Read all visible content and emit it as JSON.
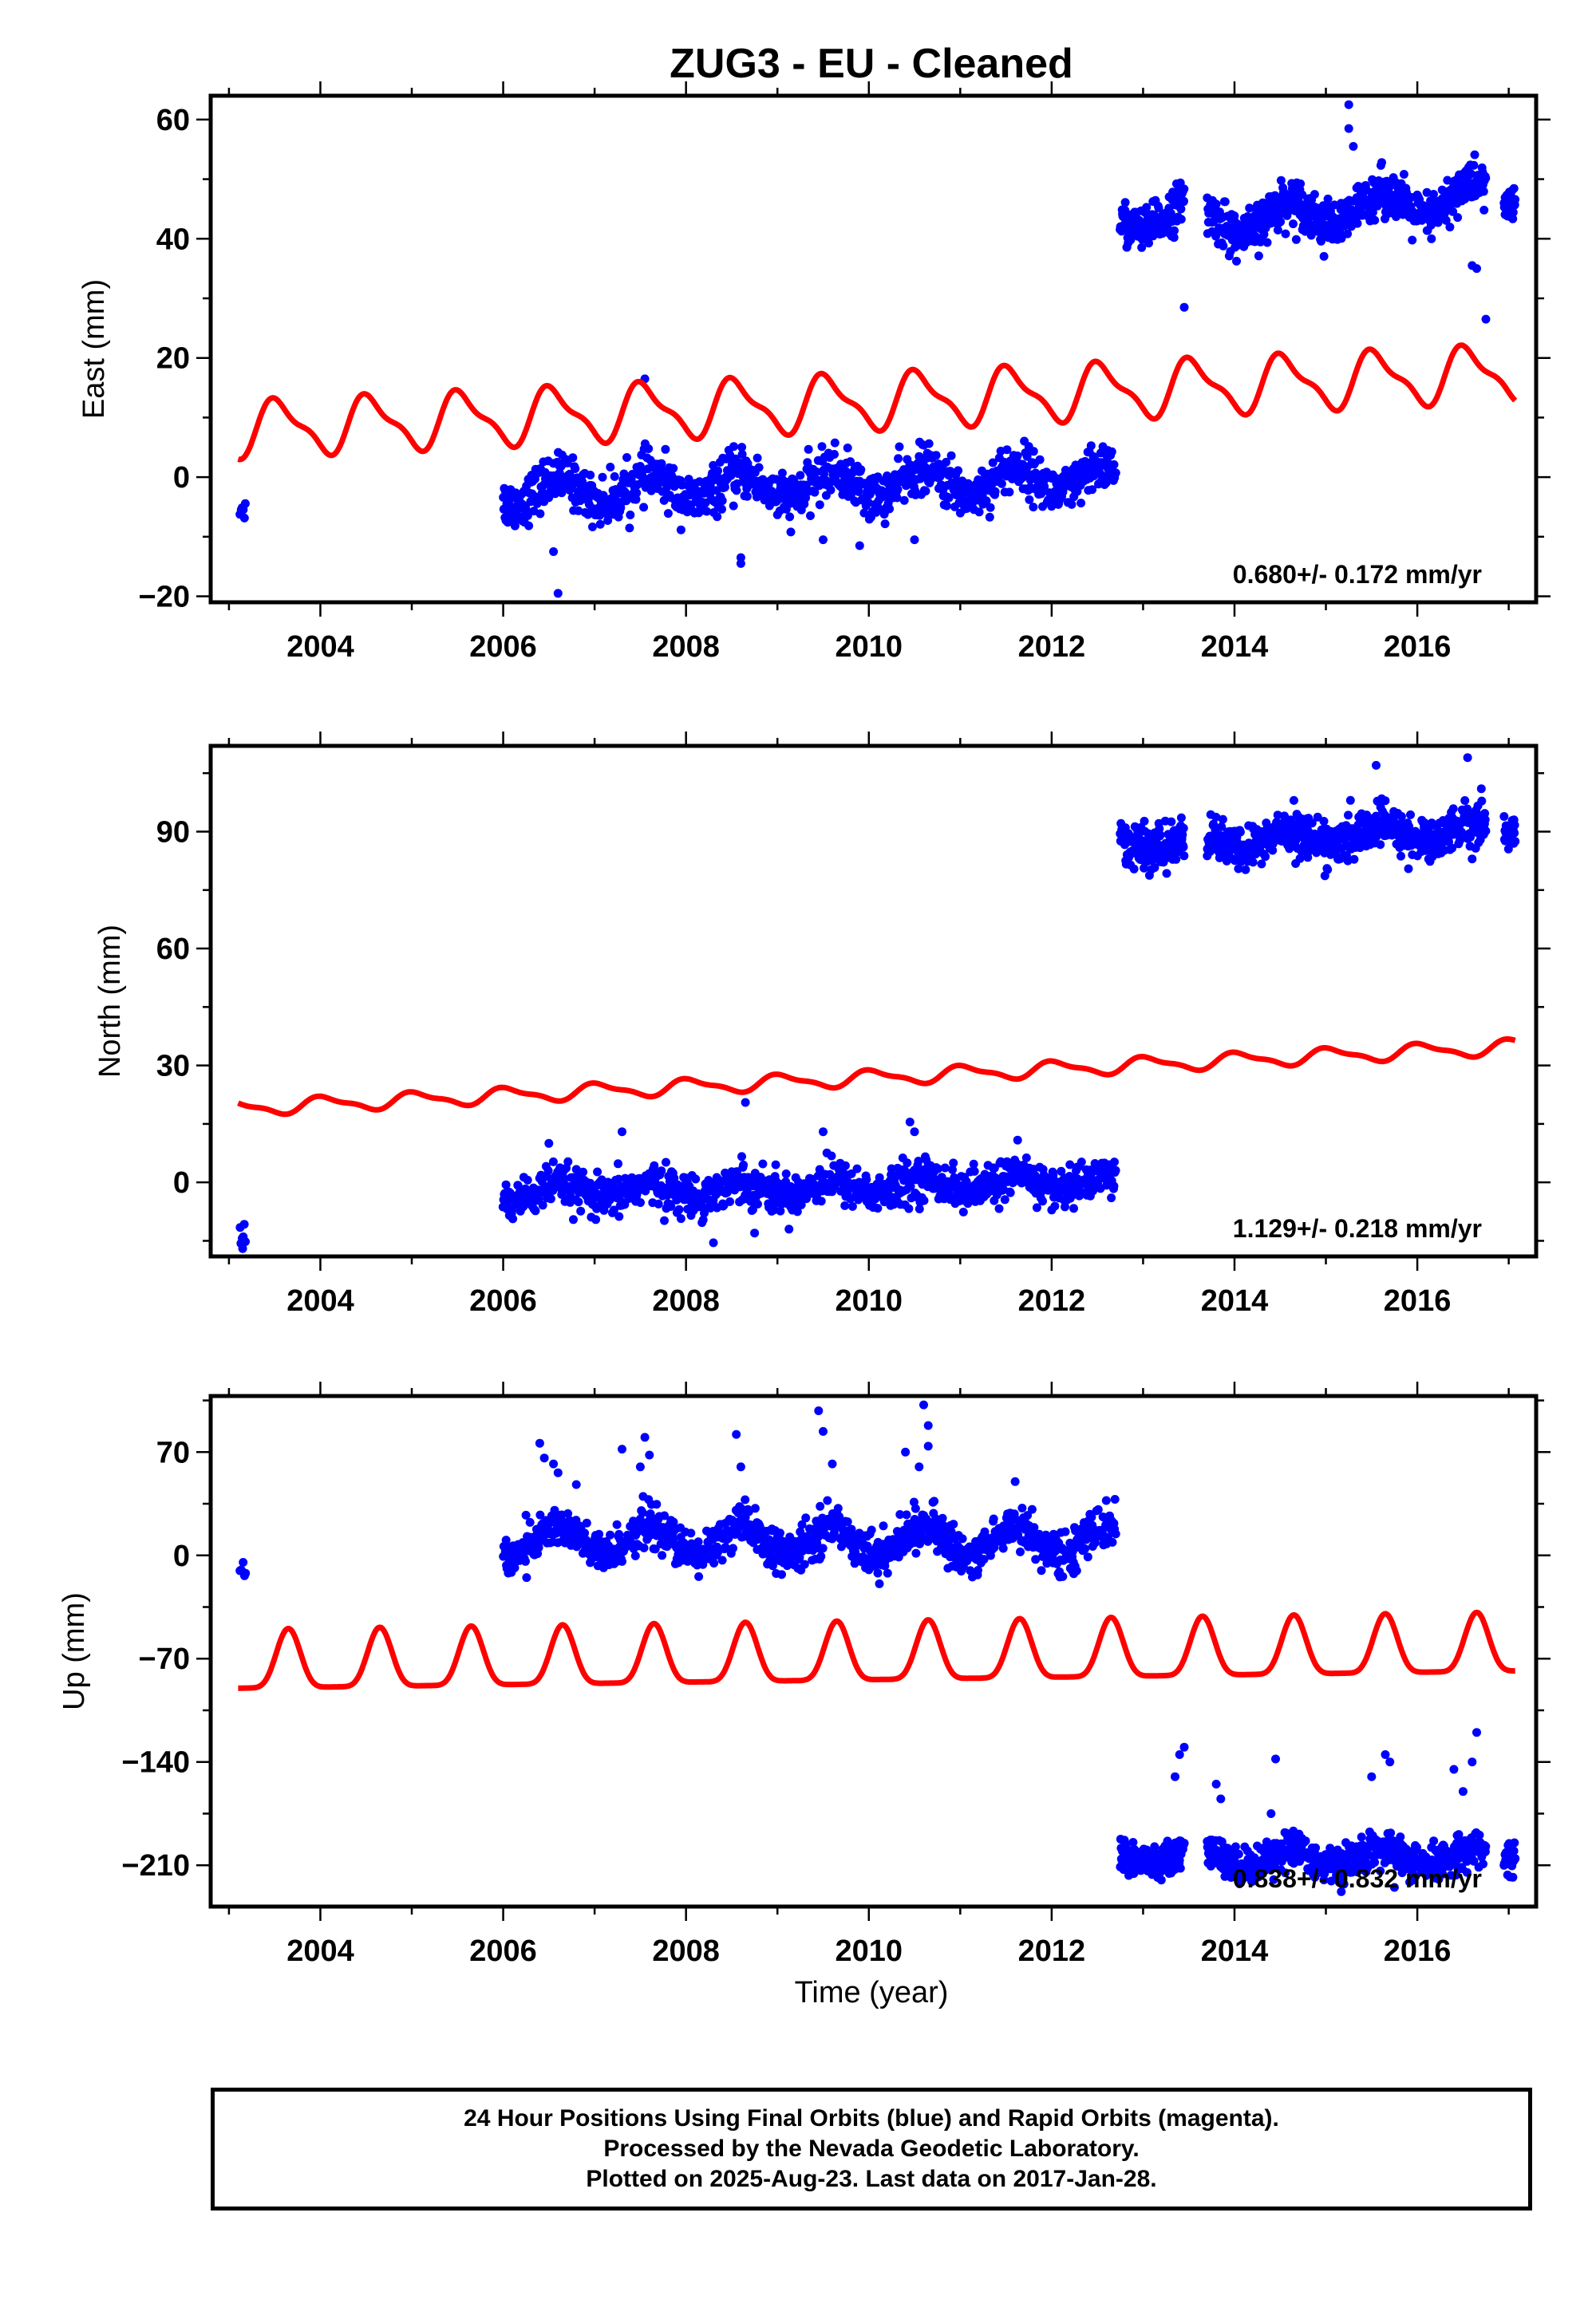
{
  "figure": {
    "title": "ZUG3  - EU - Cleaned",
    "xlabel": "Time (year)",
    "footer": [
      "24 Hour Positions Using Final Orbits (blue) and Rapid Orbits (magenta).",
      "Processed by the Nevada Geodetic Laboratory.",
      "Plotted on 2025-Aug-23. Last data on 2017-Jan-28."
    ]
  },
  "colors": {
    "observations": "#0000ff",
    "model": "#ff0000",
    "frame": "#000000"
  },
  "chart_data": [
    {
      "type": "scatter",
      "ylabel": "East (mm)",
      "xlim": [
        2002.8,
        2017.3
      ],
      "ylim": [
        -21,
        64
      ],
      "xticks": [
        2004,
        2006,
        2008,
        2010,
        2012,
        2014,
        2016
      ],
      "yticks": [
        -20,
        0,
        20,
        40,
        60
      ],
      "rate_label": "0.680+/- 0.172 mm/yr",
      "observations": {
        "segments": [
          {
            "start": 2003.12,
            "end": 2003.18,
            "level": -4.5,
            "seasonal": 0.5,
            "noise": 1.2,
            "n": 6
          },
          {
            "start": 2006.0,
            "end": 2012.7,
            "level": -2.5,
            "trend": 0.35,
            "seasonal": 2.2,
            "noise": 2.0,
            "n": 1100
          },
          {
            "start": 2012.75,
            "end": 2013.45,
            "level": 41.5,
            "trend": 6.0,
            "seasonal": 1.5,
            "noise": 1.8,
            "n": 150
          },
          {
            "start": 2013.7,
            "end": 2016.75,
            "level": 42.5,
            "trend": 1.5,
            "seasonal": 2.5,
            "noise": 1.9,
            "n": 600
          },
          {
            "start": 2016.95,
            "end": 2017.07,
            "level": 46.0,
            "seasonal": 0.5,
            "noise": 1.5,
            "n": 30
          }
        ],
        "outliers": [
          [
            2006.6,
            -19.5
          ],
          [
            2006.55,
            -12.5
          ],
          [
            2007.55,
            16.5
          ],
          [
            2008.6,
            -14.5
          ],
          [
            2008.6,
            -13.5
          ],
          [
            2009.5,
            -10.5
          ],
          [
            2009.9,
            -11.5
          ],
          [
            2010.5,
            -10.5
          ],
          [
            2013.45,
            28.5
          ],
          [
            2015.25,
            62.5
          ],
          [
            2015.25,
            58.5
          ],
          [
            2015.3,
            55.5
          ],
          [
            2016.75,
            26.5
          ],
          [
            2016.6,
            35.5
          ],
          [
            2016.65,
            35.0
          ]
        ]
      },
      "model": {
        "start": 2003.1,
        "end": 2017.07,
        "base": 8.0,
        "rate": 0.68,
        "amplitude": 4.3,
        "phase_year": 2003.3
      }
    },
    {
      "type": "scatter",
      "ylabel": "North (mm)",
      "xlim": [
        2002.8,
        2017.3
      ],
      "ylim": [
        -19,
        112
      ],
      "xticks": [
        2004,
        2006,
        2008,
        2010,
        2012,
        2014,
        2016
      ],
      "yticks": [
        0,
        30,
        60,
        90
      ],
      "rate_label": "1.129+/- 0.218 mm/yr",
      "observations": {
        "segments": [
          {
            "start": 2003.12,
            "end": 2003.18,
            "level": -13.0,
            "seasonal": 0.5,
            "noise": 1.5,
            "n": 6
          },
          {
            "start": 2006.0,
            "end": 2012.7,
            "level": -3.0,
            "trend": 0.5,
            "seasonal": 1.8,
            "noise": 2.6,
            "n": 1100
          },
          {
            "start": 2012.75,
            "end": 2013.45,
            "level": 87.0,
            "seasonal": 1.5,
            "noise": 2.8,
            "n": 150
          },
          {
            "start": 2013.7,
            "end": 2016.75,
            "level": 87.0,
            "trend": 1.2,
            "seasonal": 2.2,
            "noise": 2.7,
            "n": 600
          },
          {
            "start": 2016.95,
            "end": 2017.07,
            "level": 90.0,
            "seasonal": 0.5,
            "noise": 2.0,
            "n": 30
          }
        ],
        "outliers": [
          [
            2003.15,
            -17.0
          ],
          [
            2006.5,
            10.0
          ],
          [
            2007.3,
            13.0
          ],
          [
            2008.65,
            20.5
          ],
          [
            2008.3,
            -15.5
          ],
          [
            2008.75,
            -13.0
          ],
          [
            2009.5,
            13.0
          ],
          [
            2010.45,
            15.5
          ],
          [
            2010.5,
            13.0
          ],
          [
            2014.65,
            98.0
          ],
          [
            2015.55,
            107.0
          ],
          [
            2016.55,
            109.0
          ],
          [
            2016.7,
            101.0
          ],
          [
            2016.6,
            83.0
          ]
        ]
      },
      "model": {
        "start": 2003.1,
        "end": 2017.07,
        "base": 19.0,
        "rate": 1.129,
        "amplitude": 1.8,
        "phase_year": 2003.8
      }
    },
    {
      "type": "scatter",
      "ylabel": "Up (mm)",
      "xlim": [
        2002.8,
        2017.3
      ],
      "ylim": [
        -238,
        108
      ],
      "xticks": [
        2004,
        2006,
        2008,
        2010,
        2012,
        2014,
        2016
      ],
      "yticks": [
        -210,
        -140,
        -70,
        0,
        70
      ],
      "rate_label": "0.838+/- 0.832 mm/yr",
      "observations": {
        "segments": [
          {
            "start": 2003.12,
            "end": 2003.18,
            "level": -10.0,
            "seasonal": 1.0,
            "noise": 2.5,
            "n": 6
          },
          {
            "start": 2006.0,
            "end": 2012.7,
            "level": 10.0,
            "seasonal": 10.0,
            "peak_phase": 2006.6,
            "noise": 7.0,
            "n": 1100
          },
          {
            "start": 2012.75,
            "end": 2013.45,
            "level": -205.0,
            "seasonal": 4.0,
            "noise": 6.0,
            "n": 150
          },
          {
            "start": 2013.7,
            "end": 2016.75,
            "level": -205.0,
            "seasonal": 6.0,
            "peak_phase": 2014.6,
            "noise": 6.0,
            "n": 600
          },
          {
            "start": 2016.95,
            "end": 2017.07,
            "level": -205.0,
            "seasonal": 1.0,
            "noise": 5.0,
            "n": 30
          }
        ],
        "outliers": [
          [
            2006.4,
            76.0
          ],
          [
            2006.45,
            66.0
          ],
          [
            2006.55,
            62.0
          ],
          [
            2006.6,
            56.0
          ],
          [
            2006.8,
            48.0
          ],
          [
            2007.3,
            72.0
          ],
          [
            2007.55,
            80.0
          ],
          [
            2007.6,
            68.0
          ],
          [
            2007.5,
            60.0
          ],
          [
            2008.55,
            82.0
          ],
          [
            2008.6,
            60.0
          ],
          [
            2009.45,
            98.0
          ],
          [
            2009.5,
            84.0
          ],
          [
            2009.6,
            62.0
          ],
          [
            2010.4,
            70.0
          ],
          [
            2010.55,
            60.0
          ],
          [
            2010.6,
            102.0
          ],
          [
            2010.65,
            88.0
          ],
          [
            2010.65,
            74.0
          ],
          [
            2011.6,
            50.0
          ],
          [
            2013.35,
            -150.0
          ],
          [
            2013.45,
            -130.0
          ],
          [
            2013.4,
            -135.0
          ],
          [
            2013.8,
            -155.0
          ],
          [
            2013.85,
            -165.0
          ],
          [
            2014.45,
            -138.0
          ],
          [
            2014.4,
            -175.0
          ],
          [
            2015.5,
            -150.0
          ],
          [
            2015.65,
            -135.0
          ],
          [
            2015.7,
            -140.0
          ],
          [
            2016.4,
            -145.0
          ],
          [
            2016.65,
            -120.0
          ],
          [
            2016.6,
            -140.0
          ],
          [
            2016.5,
            -160.0
          ],
          [
            2015.75,
            -225.0
          ],
          [
            2013.2,
            -220.0
          ]
        ]
      },
      "model": {
        "start": 2003.1,
        "end": 2017.07,
        "base": -78.0,
        "rate": 0.838,
        "amplitude": 20.0,
        "phase_year": 2003.65,
        "shape": "peaked"
      }
    }
  ]
}
